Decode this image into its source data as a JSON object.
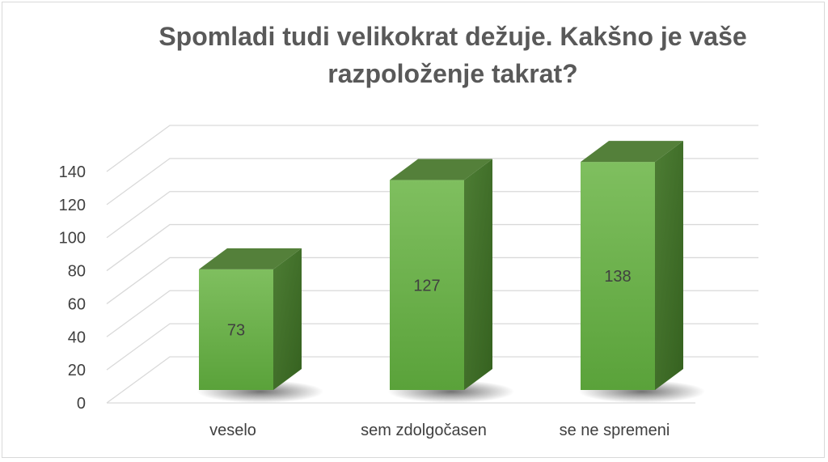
{
  "chart_data": {
    "type": "bar",
    "title_lines": [
      "Spomladi tudi velikokrat dežuje. Kakšno je vaše",
      "razpoloženje takrat?"
    ],
    "categories": [
      "veselo",
      "sem zdolgočasen",
      "se ne spremeni"
    ],
    "values": [
      73,
      127,
      138
    ],
    "ylim": [
      0,
      140
    ],
    "yticks": [
      0,
      20,
      40,
      60,
      80,
      100,
      120,
      140
    ],
    "grid": true,
    "legend": "none",
    "bar_color": "#6aa84f",
    "bar_top_color": "#54803a",
    "bar_side_color": "#3f6b2a"
  }
}
